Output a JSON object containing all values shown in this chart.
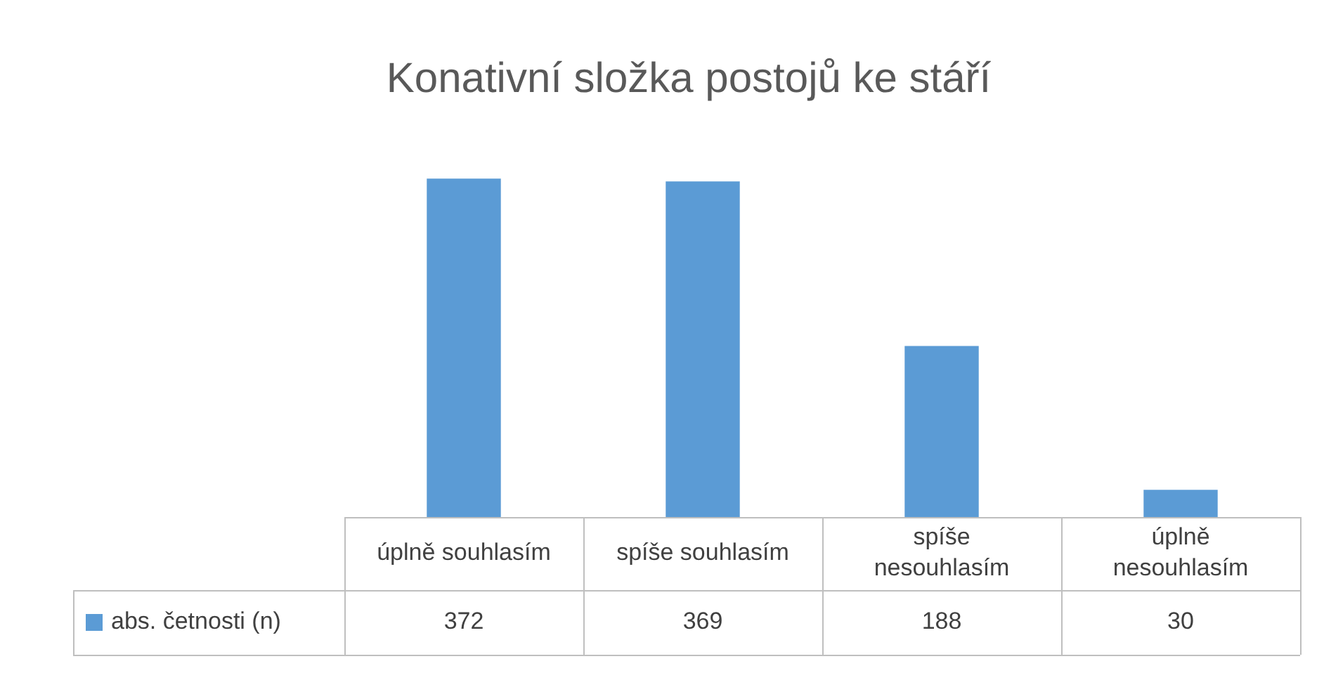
{
  "chart_data": {
    "type": "bar",
    "title": "Konativní složka postojů ke stáří",
    "categories": [
      "úplně souhlasím",
      "spíše souhlasím",
      "spíše nesouhlasím",
      "úplně nesouhlasím"
    ],
    "series": [
      {
        "name": "abs. četnosti (n)",
        "color": "#5b9bd5",
        "values": [
          372,
          369,
          188,
          30
        ]
      }
    ],
    "data_labels": true,
    "legend": "bottom"
  }
}
